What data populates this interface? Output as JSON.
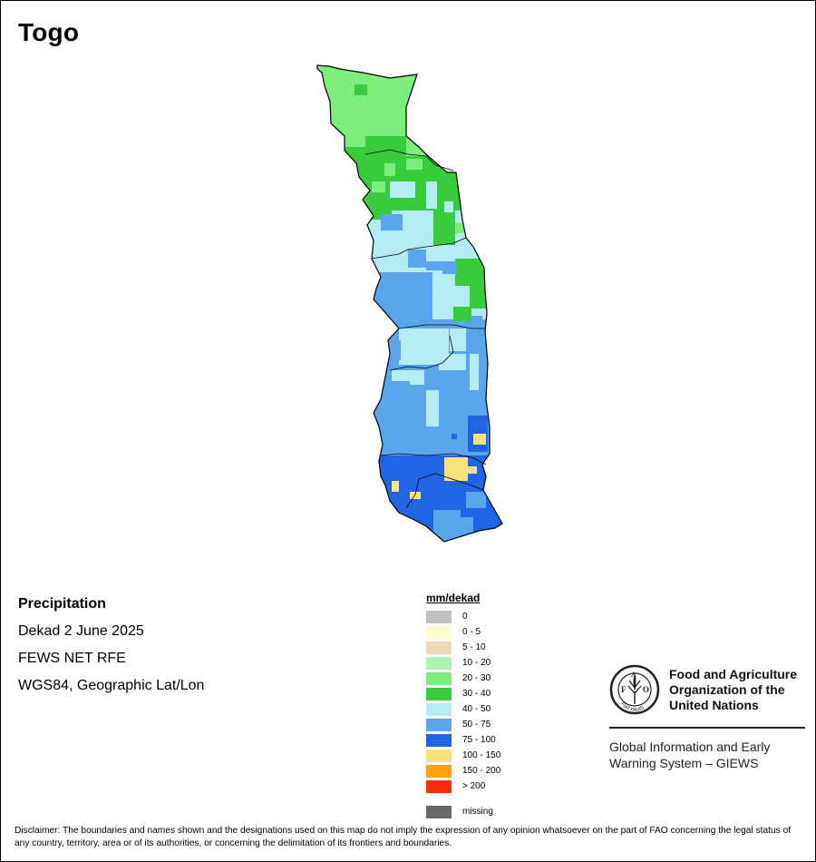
{
  "map_title": "Togo",
  "info": {
    "variable": "Precipitation",
    "period": "Dekad 2 June 2025",
    "source": "FEWS NET RFE",
    "projection": "WGS84, Geographic Lat/Lon"
  },
  "legend": {
    "title": "mm/dekad",
    "items": [
      {
        "label": "0",
        "color": "#c0c0c0"
      },
      {
        "label": "0 - 5",
        "color": "#fffccc"
      },
      {
        "label": "5 - 10",
        "color": "#ead9b4"
      },
      {
        "label": "10 - 20",
        "color": "#b2f2b2"
      },
      {
        "label": "20 - 30",
        "color": "#7cee7c"
      },
      {
        "label": "30 - 40",
        "color": "#38cc3c"
      },
      {
        "label": "40 - 50",
        "color": "#b4ecf4"
      },
      {
        "label": "50 - 75",
        "color": "#5aa6ec"
      },
      {
        "label": "75 - 100",
        "color": "#2164e4"
      },
      {
        "label": "100 - 150",
        "color": "#fce17a"
      },
      {
        "label": "150 - 200",
        "color": "#fea010"
      },
      {
        "label": "> 200",
        "color": "#fd2e10"
      }
    ],
    "missing": {
      "label": "missing",
      "color": "#686868"
    }
  },
  "fao": {
    "name_line1": "Food and Agriculture",
    "name_line2": "Organization of the",
    "name_line3": "United Nations",
    "emblem_letters": "FAO",
    "emblem_motto": "FIAT PANIS",
    "giews_line1": "Global Information and Early",
    "giews_line2": "Warning System – GIEWS"
  },
  "disclaimer": "Disclaimer: The boundaries and names shown and the designations used on this map do not imply the expression of any opinion whatsoever on the part of FAO concerning the legal status of any country, territory, area or of its authorities, or concerning the delimitation of its frontiers and boundaries.",
  "precip_zones": [
    {
      "zone": "far-north",
      "class": "20 - 30",
      "color": "#7cee7c"
    },
    {
      "zone": "north",
      "class": "30 - 40",
      "color": "#38cc3c"
    },
    {
      "zone": "north-central",
      "class": "40 - 50",
      "color": "#b4ecf4"
    },
    {
      "zone": "central",
      "class": "50 - 75",
      "color": "#5aa6ec"
    },
    {
      "zone": "south",
      "class": "75 - 100",
      "color": "#2164e4"
    },
    {
      "zone": "south-patches",
      "class": "100 - 150",
      "color": "#fce17a"
    }
  ]
}
